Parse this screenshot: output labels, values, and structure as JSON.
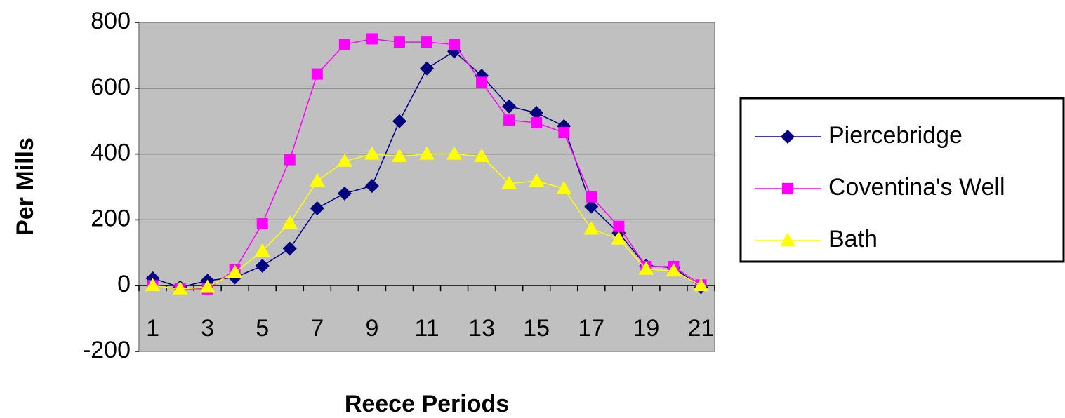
{
  "chart_data": {
    "type": "line",
    "x_label": "Reece Periods",
    "y_label": "Per Mills",
    "categories": [
      "1",
      null,
      "3",
      null,
      "5",
      null,
      "7",
      null,
      "9",
      null,
      "11",
      null,
      "13",
      null,
      "15",
      null,
      "17",
      null,
      "19",
      null,
      "21"
    ],
    "series": [
      {
        "name": "Piercebridge",
        "color": "#000080",
        "marker": "diamond",
        "values": [
          22,
          -5,
          15,
          25,
          60,
          112,
          235,
          280,
          303,
          500,
          660,
          712,
          638,
          545,
          525,
          485,
          240,
          160,
          60,
          55,
          -5
        ]
      },
      {
        "name": "Coventina's Well",
        "color": "#ff00ff",
        "marker": "square",
        "values": [
          0,
          -10,
          -10,
          48,
          188,
          383,
          643,
          733,
          750,
          740,
          740,
          733,
          618,
          503,
          495,
          465,
          270,
          180,
          58,
          58,
          2
        ]
      },
      {
        "name": "Bath",
        "color": "#ffff00",
        "marker": "triangle",
        "values": [
          0,
          -10,
          -5,
          40,
          105,
          190,
          318,
          378,
          400,
          393,
          400,
          400,
          393,
          310,
          318,
          295,
          172,
          142,
          50,
          45,
          0
        ]
      }
    ],
    "ylim": [
      -200,
      800
    ],
    "yticks": [
      -200,
      0,
      200,
      400,
      600,
      800
    ],
    "grid": true,
    "legend": "right",
    "plot_background": "#c0c0c0"
  }
}
